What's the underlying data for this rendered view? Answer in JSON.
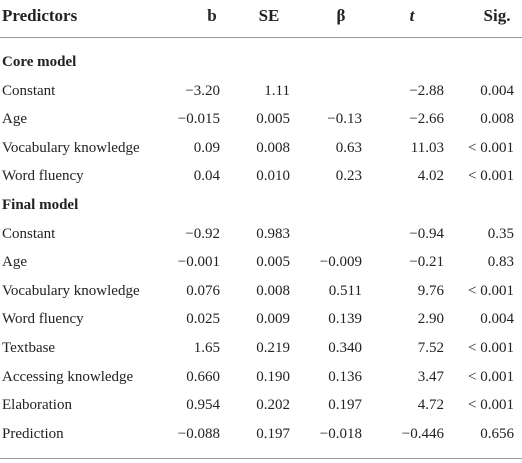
{
  "table": {
    "header": [
      "Predictors",
      "b",
      "SE",
      "β",
      "t",
      "Sig."
    ],
    "sections": [
      {
        "title": "Core model",
        "rows": [
          [
            "Constant",
            "−3.20",
            "1.11",
            null,
            "−2.88",
            "0.004"
          ],
          [
            "Age",
            "−0.015",
            "0.005",
            "−0.13",
            "−2.66",
            "0.008"
          ],
          [
            "Vocabulary knowledge",
            "0.09",
            "0.008",
            "0.63",
            "11.03",
            "< 0.001"
          ],
          [
            "Word fluency",
            "0.04",
            "0.010",
            "0.23",
            "4.02",
            "< 0.001"
          ]
        ]
      },
      {
        "title": "Final model",
        "rows": [
          [
            "Constant",
            "−0.92",
            "0.983",
            null,
            "−0.94",
            "0.35"
          ],
          [
            "Age",
            "−0.001",
            "0.005",
            "−0.009",
            "−0.21",
            "0.83"
          ],
          [
            "Vocabulary knowledge",
            "0.076",
            "0.008",
            "0.511",
            "9.76",
            "< 0.001"
          ],
          [
            "Word fluency",
            "0.025",
            "0.009",
            "0.139",
            "2.90",
            "0.004"
          ],
          [
            "Textbase",
            "1.65",
            "0.219",
            "0.340",
            "7.52",
            "< 0.001"
          ],
          [
            "Accessing knowledge",
            "0.660",
            "0.190",
            "0.136",
            "3.47",
            "< 0.001"
          ],
          [
            "Elaboration",
            "0.954",
            "0.202",
            "0.197",
            "4.72",
            "< 0.001"
          ],
          [
            "Prediction",
            "−0.088",
            "0.197",
            "−0.018",
            "−0.446",
            "0.656"
          ]
        ]
      }
    ]
  }
}
